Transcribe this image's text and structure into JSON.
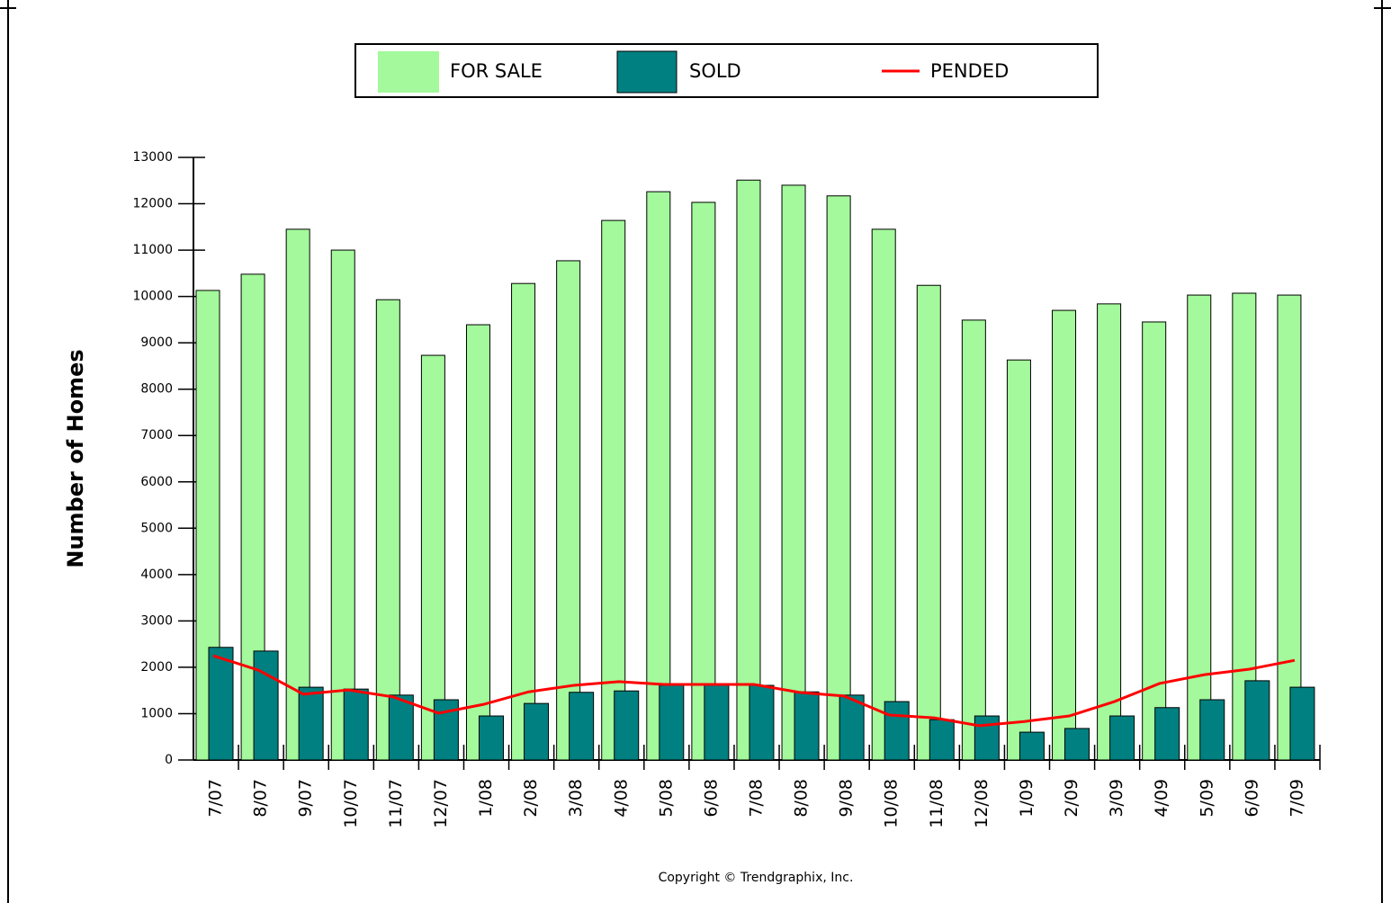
{
  "chart_data": {
    "type": "bar",
    "y_label": "Number of Homes",
    "source": "Copyright © Trendgraphix, Inc.",
    "categories": [
      "7/07",
      "8/07",
      "9/07",
      "10/07",
      "11/07",
      "12/07",
      "1/08",
      "2/08",
      "3/08",
      "4/08",
      "5/08",
      "6/08",
      "7/08",
      "8/08",
      "9/08",
      "10/08",
      "11/08",
      "12/08",
      "1/09",
      "2/09",
      "3/09",
      "4/09",
      "5/09",
      "6/09",
      "7/09"
    ],
    "series": [
      {
        "name": "FOR SALE",
        "type": "bar",
        "color": "#a3f99b",
        "values": [
          10130,
          10480,
          11450,
          11000,
          9930,
          8730,
          9390,
          10280,
          10770,
          11640,
          12260,
          12030,
          12510,
          12400,
          12170,
          11450,
          10240,
          9490,
          8630,
          9700,
          9840,
          9450,
          10030,
          10070,
          10030
        ]
      },
      {
        "name": "SOLD",
        "type": "bar",
        "color": "#008080",
        "values": [
          2430,
          2350,
          1570,
          1530,
          1400,
          1300,
          950,
          1220,
          1460,
          1490,
          1610,
          1610,
          1610,
          1470,
          1400,
          1260,
          870,
          950,
          600,
          680,
          950,
          1130,
          1300,
          1710,
          1570
        ]
      },
      {
        "name": "PENDED",
        "type": "line",
        "color": "#ff0000",
        "values": [
          2250,
          1940,
          1420,
          1510,
          1360,
          1010,
          1200,
          1470,
          1610,
          1690,
          1630,
          1630,
          1630,
          1460,
          1380,
          970,
          910,
          740,
          830,
          950,
          1260,
          1650,
          1840,
          1960,
          2150
        ]
      }
    ],
    "ylim": [
      0,
      13000
    ],
    "yticks": [
      0,
      1000,
      2000,
      3000,
      4000,
      5000,
      6000,
      7000,
      8000,
      9000,
      10000,
      11000,
      12000,
      13000
    ],
    "legend": "top"
  }
}
